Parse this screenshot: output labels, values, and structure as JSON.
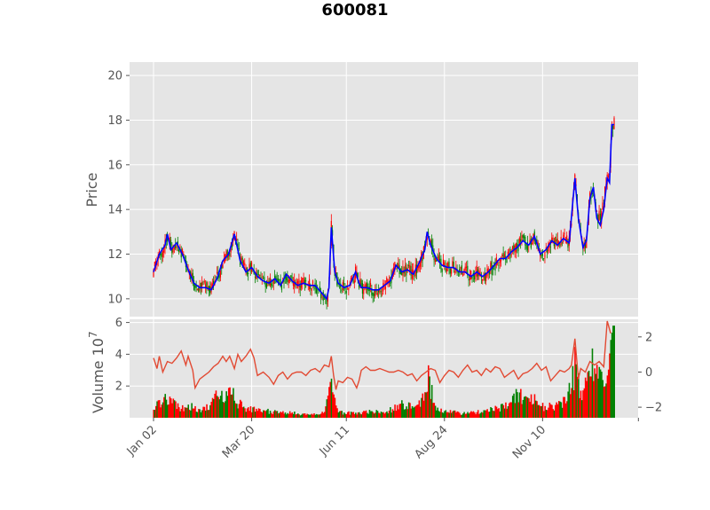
{
  "chart_data": {
    "title": "600081",
    "type": "candlestick",
    "colors": {
      "up": "#ff0000",
      "down": "#008000",
      "ma": "#0000ff",
      "macd": "#e24a33",
      "panel_bg": "#e5e5e5",
      "grid": "#ffffff"
    },
    "price_panel": {
      "ylabel": "Price",
      "ylim": [
        9.2,
        20.6
      ],
      "yticks": [
        "10",
        "12",
        "14",
        "16",
        "18",
        "20"
      ],
      "ma_line": [
        [
          0,
          11.2
        ],
        [
          5,
          12.0
        ],
        [
          10,
          12.4
        ],
        [
          12,
          12.9
        ],
        [
          15,
          12.2
        ],
        [
          20,
          12.5
        ],
        [
          25,
          12.0
        ],
        [
          30,
          11.3
        ],
        [
          35,
          10.7
        ],
        [
          40,
          10.5
        ],
        [
          45,
          10.5
        ],
        [
          50,
          10.4
        ],
        [
          55,
          10.9
        ],
        [
          60,
          11.7
        ],
        [
          65,
          12.0
        ],
        [
          70,
          12.9
        ],
        [
          75,
          11.7
        ],
        [
          80,
          11.2
        ],
        [
          85,
          11.4
        ],
        [
          90,
          11.0
        ],
        [
          95,
          10.8
        ],
        [
          100,
          10.7
        ],
        [
          105,
          10.9
        ],
        [
          110,
          10.6
        ],
        [
          115,
          11.1
        ],
        [
          120,
          10.8
        ],
        [
          125,
          10.6
        ],
        [
          130,
          10.7
        ],
        [
          135,
          10.6
        ],
        [
          140,
          10.6
        ],
        [
          145,
          10.3
        ],
        [
          150,
          10.0
        ],
        [
          152,
          10.5
        ],
        [
          154,
          13.2
        ],
        [
          157,
          11.2
        ],
        [
          160,
          10.7
        ],
        [
          165,
          10.5
        ],
        [
          170,
          10.6
        ],
        [
          175,
          11.2
        ],
        [
          178,
          10.7
        ],
        [
          180,
          10.5
        ],
        [
          185,
          10.5
        ],
        [
          190,
          10.4
        ],
        [
          195,
          10.4
        ],
        [
          200,
          10.6
        ],
        [
          205,
          10.8
        ],
        [
          210,
          11.5
        ],
        [
          215,
          11.2
        ],
        [
          220,
          11.3
        ],
        [
          225,
          11.1
        ],
        [
          230,
          11.6
        ],
        [
          235,
          12.2
        ],
        [
          237,
          13.0
        ],
        [
          240,
          12.4
        ],
        [
          245,
          11.8
        ],
        [
          250,
          11.5
        ],
        [
          255,
          11.4
        ],
        [
          260,
          11.4
        ],
        [
          265,
          11.2
        ],
        [
          270,
          11.2
        ],
        [
          275,
          11.0
        ],
        [
          280,
          11.2
        ],
        [
          285,
          11.0
        ],
        [
          290,
          11.2
        ],
        [
          295,
          11.5
        ],
        [
          300,
          11.8
        ],
        [
          305,
          11.8
        ],
        [
          310,
          12.1
        ],
        [
          315,
          12.3
        ],
        [
          320,
          12.6
        ],
        [
          325,
          12.4
        ],
        [
          330,
          12.8
        ],
        [
          335,
          12.0
        ],
        [
          340,
          12.2
        ],
        [
          345,
          12.6
        ],
        [
          350,
          12.4
        ],
        [
          355,
          12.7
        ],
        [
          360,
          12.5
        ],
        [
          365,
          15.4
        ],
        [
          368,
          13.6
        ],
        [
          372,
          12.3
        ],
        [
          375,
          12.6
        ],
        [
          378,
          14.5
        ],
        [
          381,
          15.0
        ],
        [
          384,
          13.6
        ],
        [
          387,
          13.3
        ],
        [
          390,
          14.0
        ],
        [
          393,
          15.4
        ],
        [
          395,
          15.2
        ],
        [
          397,
          17.8
        ]
      ]
    },
    "volume_panel": {
      "ylabel": "Volume  10",
      "ylabel_exponent": "7",
      "ylim": [
        0,
        6.2
      ],
      "yticks": [
        "2",
        "4",
        "6"
      ],
      "right_ylim": [
        -2.6,
        3.0
      ],
      "right_yticks": [
        "−2",
        "0",
        "2"
      ],
      "volume_trend": [
        [
          0,
          0.7
        ],
        [
          8,
          1.2
        ],
        [
          16,
          0.9
        ],
        [
          24,
          0.6
        ],
        [
          32,
          0.7
        ],
        [
          40,
          0.5
        ],
        [
          48,
          0.8
        ],
        [
          56,
          1.4
        ],
        [
          62,
          1.2
        ],
        [
          66,
          2.4
        ],
        [
          72,
          1.0
        ],
        [
          80,
          0.6
        ],
        [
          90,
          0.5
        ],
        [
          100,
          0.4
        ],
        [
          110,
          0.3
        ],
        [
          120,
          0.3
        ],
        [
          130,
          0.2
        ],
        [
          140,
          0.2
        ],
        [
          148,
          0.3
        ],
        [
          154,
          2.6
        ],
        [
          158,
          0.6
        ],
        [
          164,
          0.3
        ],
        [
          172,
          0.3
        ],
        [
          180,
          0.3
        ],
        [
          188,
          0.4
        ],
        [
          200,
          0.3
        ],
        [
          208,
          0.6
        ],
        [
          216,
          0.9
        ],
        [
          224,
          0.6
        ],
        [
          232,
          1.0
        ],
        [
          238,
          2.4
        ],
        [
          244,
          0.6
        ],
        [
          252,
          0.4
        ],
        [
          264,
          0.3
        ],
        [
          276,
          0.3
        ],
        [
          284,
          0.4
        ],
        [
          292,
          0.5
        ],
        [
          300,
          0.6
        ],
        [
          308,
          0.8
        ],
        [
          316,
          1.6
        ],
        [
          324,
          1.0
        ],
        [
          330,
          1.2
        ],
        [
          336,
          0.7
        ],
        [
          344,
          0.7
        ],
        [
          352,
          0.8
        ],
        [
          360,
          1.6
        ],
        [
          365,
          3.2
        ],
        [
          370,
          1.5
        ],
        [
          375,
          2.0
        ],
        [
          380,
          3.5
        ],
        [
          385,
          2.6
        ],
        [
          390,
          2.7
        ],
        [
          394,
          3.2
        ],
        [
          396,
          4.9
        ],
        [
          398,
          5.8
        ]
      ],
      "oscillator": [
        [
          0,
          0.8
        ],
        [
          3,
          0.2
        ],
        [
          5,
          0.9
        ],
        [
          8,
          0.0
        ],
        [
          12,
          0.6
        ],
        [
          16,
          0.5
        ],
        [
          20,
          0.8
        ],
        [
          24,
          1.2
        ],
        [
          28,
          0.4
        ],
        [
          30,
          0.9
        ],
        [
          34,
          0.1
        ],
        [
          36,
          -0.9
        ],
        [
          40,
          -0.4
        ],
        [
          44,
          -0.2
        ],
        [
          48,
          0.0
        ],
        [
          52,
          0.3
        ],
        [
          56,
          0.5
        ],
        [
          60,
          0.9
        ],
        [
          63,
          0.6
        ],
        [
          66,
          0.9
        ],
        [
          70,
          0.2
        ],
        [
          73,
          1.0
        ],
        [
          76,
          0.6
        ],
        [
          80,
          0.9
        ],
        [
          84,
          1.3
        ],
        [
          87,
          0.8
        ],
        [
          90,
          -0.2
        ],
        [
          95,
          0.0
        ],
        [
          100,
          -0.3
        ],
        [
          104,
          -0.7
        ],
        [
          108,
          -0.2
        ],
        [
          112,
          0.0
        ],
        [
          116,
          -0.4
        ],
        [
          120,
          -0.1
        ],
        [
          124,
          0.0
        ],
        [
          128,
          0.0
        ],
        [
          132,
          -0.2
        ],
        [
          136,
          0.1
        ],
        [
          140,
          0.2
        ],
        [
          144,
          0.0
        ],
        [
          148,
          0.4
        ],
        [
          152,
          0.3
        ],
        [
          154,
          0.9
        ],
        [
          156,
          -0.2
        ],
        [
          158,
          -1.0
        ],
        [
          160,
          -0.5
        ],
        [
          164,
          -0.6
        ],
        [
          168,
          -0.3
        ],
        [
          172,
          -0.4
        ],
        [
          176,
          -0.9
        ],
        [
          178,
          -0.5
        ],
        [
          180,
          0.1
        ],
        [
          184,
          0.3
        ],
        [
          188,
          0.1
        ],
        [
          192,
          0.1
        ],
        [
          196,
          0.2
        ],
        [
          200,
          0.1
        ],
        [
          204,
          0.0
        ],
        [
          208,
          0.0
        ],
        [
          212,
          0.1
        ],
        [
          216,
          0.0
        ],
        [
          220,
          -0.2
        ],
        [
          224,
          -0.1
        ],
        [
          228,
          -0.5
        ],
        [
          232,
          -0.2
        ],
        [
          236,
          0.0
        ],
        [
          240,
          0.2
        ],
        [
          244,
          0.1
        ],
        [
          248,
          -0.6
        ],
        [
          252,
          -0.2
        ],
        [
          256,
          0.1
        ],
        [
          260,
          0.0
        ],
        [
          264,
          -0.3
        ],
        [
          268,
          0.1
        ],
        [
          272,
          0.4
        ],
        [
          276,
          0.0
        ],
        [
          280,
          0.1
        ],
        [
          284,
          -0.2
        ],
        [
          288,
          0.2
        ],
        [
          292,
          0.0
        ],
        [
          296,
          0.3
        ],
        [
          300,
          0.2
        ],
        [
          304,
          -0.3
        ],
        [
          308,
          -0.1
        ],
        [
          312,
          0.1
        ],
        [
          316,
          -0.4
        ],
        [
          320,
          -0.1
        ],
        [
          324,
          0.0
        ],
        [
          328,
          0.2
        ],
        [
          332,
          0.5
        ],
        [
          336,
          0.1
        ],
        [
          340,
          0.3
        ],
        [
          344,
          -0.5
        ],
        [
          348,
          -0.2
        ],
        [
          352,
          0.1
        ],
        [
          356,
          0.0
        ],
        [
          360,
          0.2
        ],
        [
          362,
          0.4
        ],
        [
          365,
          1.9
        ],
        [
          368,
          -0.4
        ],
        [
          370,
          0.2
        ],
        [
          374,
          0.0
        ],
        [
          378,
          0.6
        ],
        [
          382,
          0.4
        ],
        [
          386,
          0.6
        ],
        [
          390,
          0.3
        ],
        [
          393,
          2.9
        ],
        [
          396,
          2.2
        ]
      ]
    },
    "x": {
      "n_days": 400,
      "tick_labels": [
        "Jan 02",
        "Mar 20",
        "Jun 11",
        "Aug 24",
        "Nov 10",
        ""
      ],
      "tick_positions": [
        0,
        85,
        167,
        252,
        337,
        420
      ]
    }
  }
}
